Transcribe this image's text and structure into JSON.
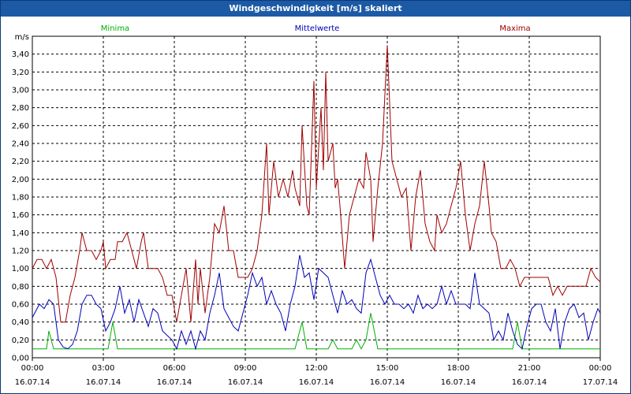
{
  "window": {
    "title": "Windgeschwindigkeit [m/s] skaliert"
  },
  "colors": {
    "min": "#00b000",
    "mean": "#0000b8",
    "max": "#a00000",
    "grid": "#000000",
    "background": "#ffffff"
  },
  "chart_data": {
    "type": "line",
    "title": "Windgeschwindigkeit [m/s] skaliert",
    "ylabel": "m/s",
    "ylim": [
      0,
      3.6
    ],
    "yticks": [
      "0,00",
      "0,20",
      "0,40",
      "0,60",
      "0,80",
      "1,00",
      "1,20",
      "1,40",
      "1,60",
      "1,80",
      "2,00",
      "2,20",
      "2,40",
      "2,60",
      "2,80",
      "3,00",
      "3,20",
      "3,40"
    ],
    "xticks": [
      {
        "time": "00:00",
        "date": "16.07.14"
      },
      {
        "time": "03:00",
        "date": "16.07.14"
      },
      {
        "time": "06:00",
        "date": "16.07.14"
      },
      {
        "time": "09:00",
        "date": "16.07.14"
      },
      {
        "time": "12:00",
        "date": "16.07.14"
      },
      {
        "time": "15:00",
        "date": "16.07.14"
      },
      {
        "time": "18:00",
        "date": "16.07.14"
      },
      {
        "time": "21:00",
        "date": "16.07.14"
      },
      {
        "time": "00:00",
        "date": "17.07.14"
      }
    ],
    "x_unit": "hours",
    "grid": true,
    "legend_placement": "top",
    "series": [
      {
        "name": "Minima",
        "color": "#00b000",
        "points": [
          [
            0,
            0.1
          ],
          [
            0.6,
            0.1
          ],
          [
            0.7,
            0.3
          ],
          [
            0.9,
            0.1
          ],
          [
            3.2,
            0.1
          ],
          [
            3.4,
            0.4
          ],
          [
            3.6,
            0.1
          ],
          [
            11.1,
            0.1
          ],
          [
            11.4,
            0.4
          ],
          [
            11.6,
            0.1
          ],
          [
            12.5,
            0.1
          ],
          [
            12.7,
            0.2
          ],
          [
            12.9,
            0.1
          ],
          [
            13.5,
            0.1
          ],
          [
            13.7,
            0.2
          ],
          [
            13.9,
            0.1
          ],
          [
            14.1,
            0.2
          ],
          [
            14.3,
            0.5
          ],
          [
            14.6,
            0.1
          ],
          [
            20.3,
            0.1
          ],
          [
            20.5,
            0.4
          ],
          [
            20.7,
            0.1
          ],
          [
            24,
            0.1
          ]
        ]
      },
      {
        "name": "Mittelwerte",
        "color": "#0000b8",
        "points": [
          [
            0,
            0.45
          ],
          [
            0.3,
            0.6
          ],
          [
            0.5,
            0.55
          ],
          [
            0.7,
            0.65
          ],
          [
            0.9,
            0.6
          ],
          [
            1.1,
            0.2
          ],
          [
            1.3,
            0.12
          ],
          [
            1.5,
            0.1
          ],
          [
            1.7,
            0.15
          ],
          [
            1.9,
            0.3
          ],
          [
            2.1,
            0.6
          ],
          [
            2.3,
            0.7
          ],
          [
            2.5,
            0.7
          ],
          [
            2.7,
            0.6
          ],
          [
            2.9,
            0.55
          ],
          [
            3.1,
            0.3
          ],
          [
            3.3,
            0.4
          ],
          [
            3.5,
            0.55
          ],
          [
            3.7,
            0.8
          ],
          [
            3.9,
            0.5
          ],
          [
            4.1,
            0.65
          ],
          [
            4.3,
            0.4
          ],
          [
            4.5,
            0.65
          ],
          [
            4.7,
            0.5
          ],
          [
            4.9,
            0.35
          ],
          [
            5.1,
            0.55
          ],
          [
            5.3,
            0.5
          ],
          [
            5.5,
            0.3
          ],
          [
            5.7,
            0.25
          ],
          [
            5.9,
            0.2
          ],
          [
            6.1,
            0.1
          ],
          [
            6.3,
            0.3
          ],
          [
            6.5,
            0.15
          ],
          [
            6.7,
            0.3
          ],
          [
            6.9,
            0.1
          ],
          [
            7.1,
            0.3
          ],
          [
            7.3,
            0.2
          ],
          [
            7.5,
            0.5
          ],
          [
            7.7,
            0.7
          ],
          [
            7.9,
            0.95
          ],
          [
            8.1,
            0.55
          ],
          [
            8.3,
            0.45
          ],
          [
            8.5,
            0.35
          ],
          [
            8.7,
            0.3
          ],
          [
            8.9,
            0.5
          ],
          [
            9.1,
            0.7
          ],
          [
            9.3,
            0.95
          ],
          [
            9.5,
            0.8
          ],
          [
            9.7,
            0.9
          ],
          [
            9.9,
            0.6
          ],
          [
            10.1,
            0.75
          ],
          [
            10.3,
            0.6
          ],
          [
            10.5,
            0.5
          ],
          [
            10.7,
            0.3
          ],
          [
            10.9,
            0.6
          ],
          [
            11.1,
            0.8
          ],
          [
            11.3,
            1.15
          ],
          [
            11.5,
            0.9
          ],
          [
            11.7,
            0.95
          ],
          [
            11.9,
            0.65
          ],
          [
            12.1,
            1.0
          ],
          [
            12.3,
            0.95
          ],
          [
            12.5,
            0.9
          ],
          [
            12.7,
            0.7
          ],
          [
            12.9,
            0.5
          ],
          [
            13.1,
            0.75
          ],
          [
            13.3,
            0.6
          ],
          [
            13.5,
            0.65
          ],
          [
            13.7,
            0.55
          ],
          [
            13.9,
            0.5
          ],
          [
            14.1,
            0.95
          ],
          [
            14.3,
            1.1
          ],
          [
            14.5,
            0.9
          ],
          [
            14.7,
            0.7
          ],
          [
            14.9,
            0.6
          ],
          [
            15.1,
            0.7
          ],
          [
            15.3,
            0.6
          ],
          [
            15.5,
            0.6
          ],
          [
            15.7,
            0.55
          ],
          [
            15.9,
            0.6
          ],
          [
            16.1,
            0.5
          ],
          [
            16.3,
            0.7
          ],
          [
            16.5,
            0.55
          ],
          [
            16.7,
            0.6
          ],
          [
            16.9,
            0.55
          ],
          [
            17.1,
            0.6
          ],
          [
            17.3,
            0.8
          ],
          [
            17.5,
            0.6
          ],
          [
            17.7,
            0.75
          ],
          [
            17.9,
            0.6
          ],
          [
            18.1,
            0.6
          ],
          [
            18.3,
            0.6
          ],
          [
            18.5,
            0.55
          ],
          [
            18.7,
            0.95
          ],
          [
            18.9,
            0.6
          ],
          [
            19.1,
            0.55
          ],
          [
            19.3,
            0.5
          ],
          [
            19.5,
            0.2
          ],
          [
            19.7,
            0.3
          ],
          [
            19.9,
            0.2
          ],
          [
            20.1,
            0.5
          ],
          [
            20.3,
            0.3
          ],
          [
            20.5,
            0.15
          ],
          [
            20.7,
            0.1
          ],
          [
            20.9,
            0.35
          ],
          [
            21.1,
            0.55
          ],
          [
            21.3,
            0.6
          ],
          [
            21.5,
            0.6
          ],
          [
            21.7,
            0.4
          ],
          [
            21.9,
            0.3
          ],
          [
            22.1,
            0.55
          ],
          [
            22.3,
            0.1
          ],
          [
            22.5,
            0.4
          ],
          [
            22.7,
            0.55
          ],
          [
            22.9,
            0.6
          ],
          [
            23.1,
            0.45
          ],
          [
            23.3,
            0.5
          ],
          [
            23.5,
            0.2
          ],
          [
            23.7,
            0.4
          ],
          [
            23.9,
            0.55
          ],
          [
            24,
            0.5
          ]
        ]
      },
      {
        "name": "Maxima",
        "color": "#a00000",
        "points": [
          [
            0,
            1.0
          ],
          [
            0.2,
            1.1
          ],
          [
            0.4,
            1.1
          ],
          [
            0.6,
            1.0
          ],
          [
            0.8,
            1.1
          ],
          [
            1.0,
            0.9
          ],
          [
            1.2,
            0.4
          ],
          [
            1.4,
            0.4
          ],
          [
            1.6,
            0.7
          ],
          [
            1.8,
            0.9
          ],
          [
            2.0,
            1.2
          ],
          [
            2.1,
            1.4
          ],
          [
            2.3,
            1.2
          ],
          [
            2.5,
            1.2
          ],
          [
            2.7,
            1.1
          ],
          [
            2.9,
            1.2
          ],
          [
            3.0,
            1.3
          ],
          [
            3.1,
            1.0
          ],
          [
            3.3,
            1.1
          ],
          [
            3.5,
            1.1
          ],
          [
            3.6,
            1.3
          ],
          [
            3.8,
            1.3
          ],
          [
            4.0,
            1.4
          ],
          [
            4.2,
            1.2
          ],
          [
            4.4,
            1.0
          ],
          [
            4.6,
            1.3
          ],
          [
            4.7,
            1.4
          ],
          [
            4.9,
            1.0
          ],
          [
            5.1,
            1.0
          ],
          [
            5.3,
            1.0
          ],
          [
            5.5,
            0.9
          ],
          [
            5.7,
            0.7
          ],
          [
            5.9,
            0.7
          ],
          [
            6.1,
            0.4
          ],
          [
            6.3,
            0.7
          ],
          [
            6.5,
            1.0
          ],
          [
            6.7,
            0.4
          ],
          [
            6.9,
            1.1
          ],
          [
            7.0,
            0.6
          ],
          [
            7.1,
            1.0
          ],
          [
            7.3,
            0.5
          ],
          [
            7.5,
            0.9
          ],
          [
            7.7,
            1.5
          ],
          [
            7.9,
            1.4
          ],
          [
            8.1,
            1.7
          ],
          [
            8.3,
            1.2
          ],
          [
            8.5,
            1.2
          ],
          [
            8.7,
            0.9
          ],
          [
            8.9,
            0.9
          ],
          [
            9.1,
            0.9
          ],
          [
            9.3,
            1.0
          ],
          [
            9.5,
            1.2
          ],
          [
            9.7,
            1.6
          ],
          [
            9.9,
            2.4
          ],
          [
            10.0,
            1.6
          ],
          [
            10.2,
            2.2
          ],
          [
            10.4,
            1.8
          ],
          [
            10.6,
            2.0
          ],
          [
            10.8,
            1.8
          ],
          [
            11.0,
            2.1
          ],
          [
            11.1,
            1.9
          ],
          [
            11.3,
            1.7
          ],
          [
            11.4,
            2.6
          ],
          [
            11.6,
            1.7
          ],
          [
            11.7,
            1.6
          ],
          [
            11.9,
            3.1
          ],
          [
            12.0,
            1.9
          ],
          [
            12.2,
            2.8
          ],
          [
            12.3,
            2.1
          ],
          [
            12.4,
            3.2
          ],
          [
            12.5,
            2.2
          ],
          [
            12.7,
            2.4
          ],
          [
            12.8,
            1.9
          ],
          [
            12.9,
            2.0
          ],
          [
            13.0,
            1.7
          ],
          [
            13.2,
            1.0
          ],
          [
            13.4,
            1.6
          ],
          [
            13.6,
            1.8
          ],
          [
            13.8,
            2.0
          ],
          [
            14.0,
            1.9
          ],
          [
            14.1,
            2.3
          ],
          [
            14.3,
            2.0
          ],
          [
            14.4,
            1.3
          ],
          [
            14.6,
            1.9
          ],
          [
            14.8,
            2.4
          ],
          [
            15.0,
            3.5
          ],
          [
            15.2,
            2.2
          ],
          [
            15.4,
            2.0
          ],
          [
            15.6,
            1.8
          ],
          [
            15.8,
            1.9
          ],
          [
            16.0,
            1.2
          ],
          [
            16.2,
            1.8
          ],
          [
            16.4,
            2.1
          ],
          [
            16.6,
            1.5
          ],
          [
            16.8,
            1.3
          ],
          [
            17.0,
            1.2
          ],
          [
            17.1,
            1.6
          ],
          [
            17.3,
            1.4
          ],
          [
            17.5,
            1.5
          ],
          [
            17.7,
            1.7
          ],
          [
            17.9,
            1.9
          ],
          [
            18.1,
            2.2
          ],
          [
            18.3,
            1.6
          ],
          [
            18.5,
            1.2
          ],
          [
            18.7,
            1.5
          ],
          [
            18.9,
            1.7
          ],
          [
            19.1,
            2.2
          ],
          [
            19.3,
            1.7
          ],
          [
            19.4,
            1.4
          ],
          [
            19.6,
            1.3
          ],
          [
            19.8,
            1.0
          ],
          [
            20.0,
            1.0
          ],
          [
            20.2,
            1.1
          ],
          [
            20.4,
            1.0
          ],
          [
            20.6,
            0.8
          ],
          [
            20.8,
            0.9
          ],
          [
            21.0,
            0.9
          ],
          [
            21.2,
            0.9
          ],
          [
            21.4,
            0.9
          ],
          [
            21.6,
            0.9
          ],
          [
            21.8,
            0.9
          ],
          [
            22.0,
            0.7
          ],
          [
            22.2,
            0.8
          ],
          [
            22.4,
            0.7
          ],
          [
            22.6,
            0.8
          ],
          [
            22.8,
            0.8
          ],
          [
            23.0,
            0.8
          ],
          [
            23.2,
            0.8
          ],
          [
            23.4,
            0.8
          ],
          [
            23.6,
            1.0
          ],
          [
            23.8,
            0.9
          ],
          [
            24,
            0.85
          ]
        ]
      }
    ]
  }
}
